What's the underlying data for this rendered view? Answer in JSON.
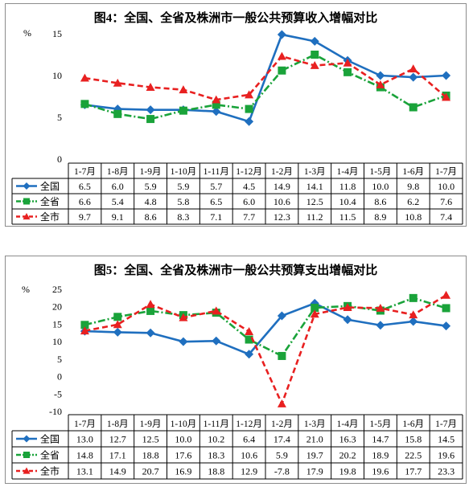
{
  "chart_data": [
    {
      "type": "line",
      "title": "图4：全国、全省及株洲市一般公共预算收入增幅对比",
      "ylabel": "%",
      "ylim": [
        0,
        15
      ],
      "yticks": [
        0,
        5,
        10,
        15
      ],
      "grid": false,
      "legend": "table-left",
      "categories": [
        "1-7月",
        "1-8月",
        "1-9月",
        "1-10月",
        "1-11月",
        "1-12月",
        "1-2月",
        "1-3月",
        "1-4月",
        "1-5月",
        "1-6月",
        "1-7月"
      ],
      "series": [
        {
          "name": "全国",
          "color": "#1f6fbf",
          "marker": "diamond",
          "dash": "solid",
          "values": [
            6.5,
            6.0,
            5.9,
            5.9,
            5.7,
            4.5,
            14.9,
            14.1,
            11.8,
            10.0,
            9.8,
            10.0
          ]
        },
        {
          "name": "全省",
          "color": "#1aa33a",
          "marker": "square",
          "dash": "dashdot",
          "values": [
            6.6,
            5.4,
            4.8,
            5.8,
            6.5,
            6.0,
            10.6,
            12.5,
            10.4,
            8.6,
            6.2,
            7.6
          ]
        },
        {
          "name": "全市",
          "color": "#e82020",
          "marker": "triangle",
          "dash": "dash",
          "values": [
            9.7,
            9.1,
            8.6,
            8.3,
            7.1,
            7.7,
            12.3,
            11.2,
            11.5,
            8.9,
            10.8,
            7.4
          ]
        }
      ]
    },
    {
      "type": "line",
      "title": "图5：全国、全省及株洲市一般公共预算支出增幅对比",
      "ylabel": "%",
      "ylim": [
        -10,
        25
      ],
      "yticks": [
        -10,
        -5,
        0,
        5,
        10,
        15,
        20,
        25
      ],
      "grid": false,
      "legend": "table-left",
      "categories": [
        "1-7月",
        "1-8月",
        "1-9月",
        "1-10月",
        "1-11月",
        "1-12月",
        "1-2月",
        "1-3月",
        "1-4月",
        "1-5月",
        "1-6月",
        "1-7月"
      ],
      "series": [
        {
          "name": "全国",
          "color": "#1f6fbf",
          "marker": "diamond",
          "dash": "solid",
          "values": [
            13.0,
            12.7,
            12.5,
            10.0,
            10.2,
            6.4,
            17.4,
            21.0,
            16.3,
            14.7,
            15.8,
            14.5
          ]
        },
        {
          "name": "全省",
          "color": "#1aa33a",
          "marker": "square",
          "dash": "dashdot",
          "values": [
            14.8,
            17.1,
            18.8,
            17.6,
            18.3,
            10.6,
            5.9,
            19.7,
            20.2,
            18.9,
            22.5,
            19.6
          ]
        },
        {
          "name": "全市",
          "color": "#e82020",
          "marker": "triangle",
          "dash": "dash",
          "values": [
            13.1,
            14.9,
            20.7,
            16.9,
            18.8,
            12.9,
            -7.8,
            17.9,
            19.8,
            19.6,
            17.7,
            23.3
          ]
        }
      ]
    }
  ]
}
